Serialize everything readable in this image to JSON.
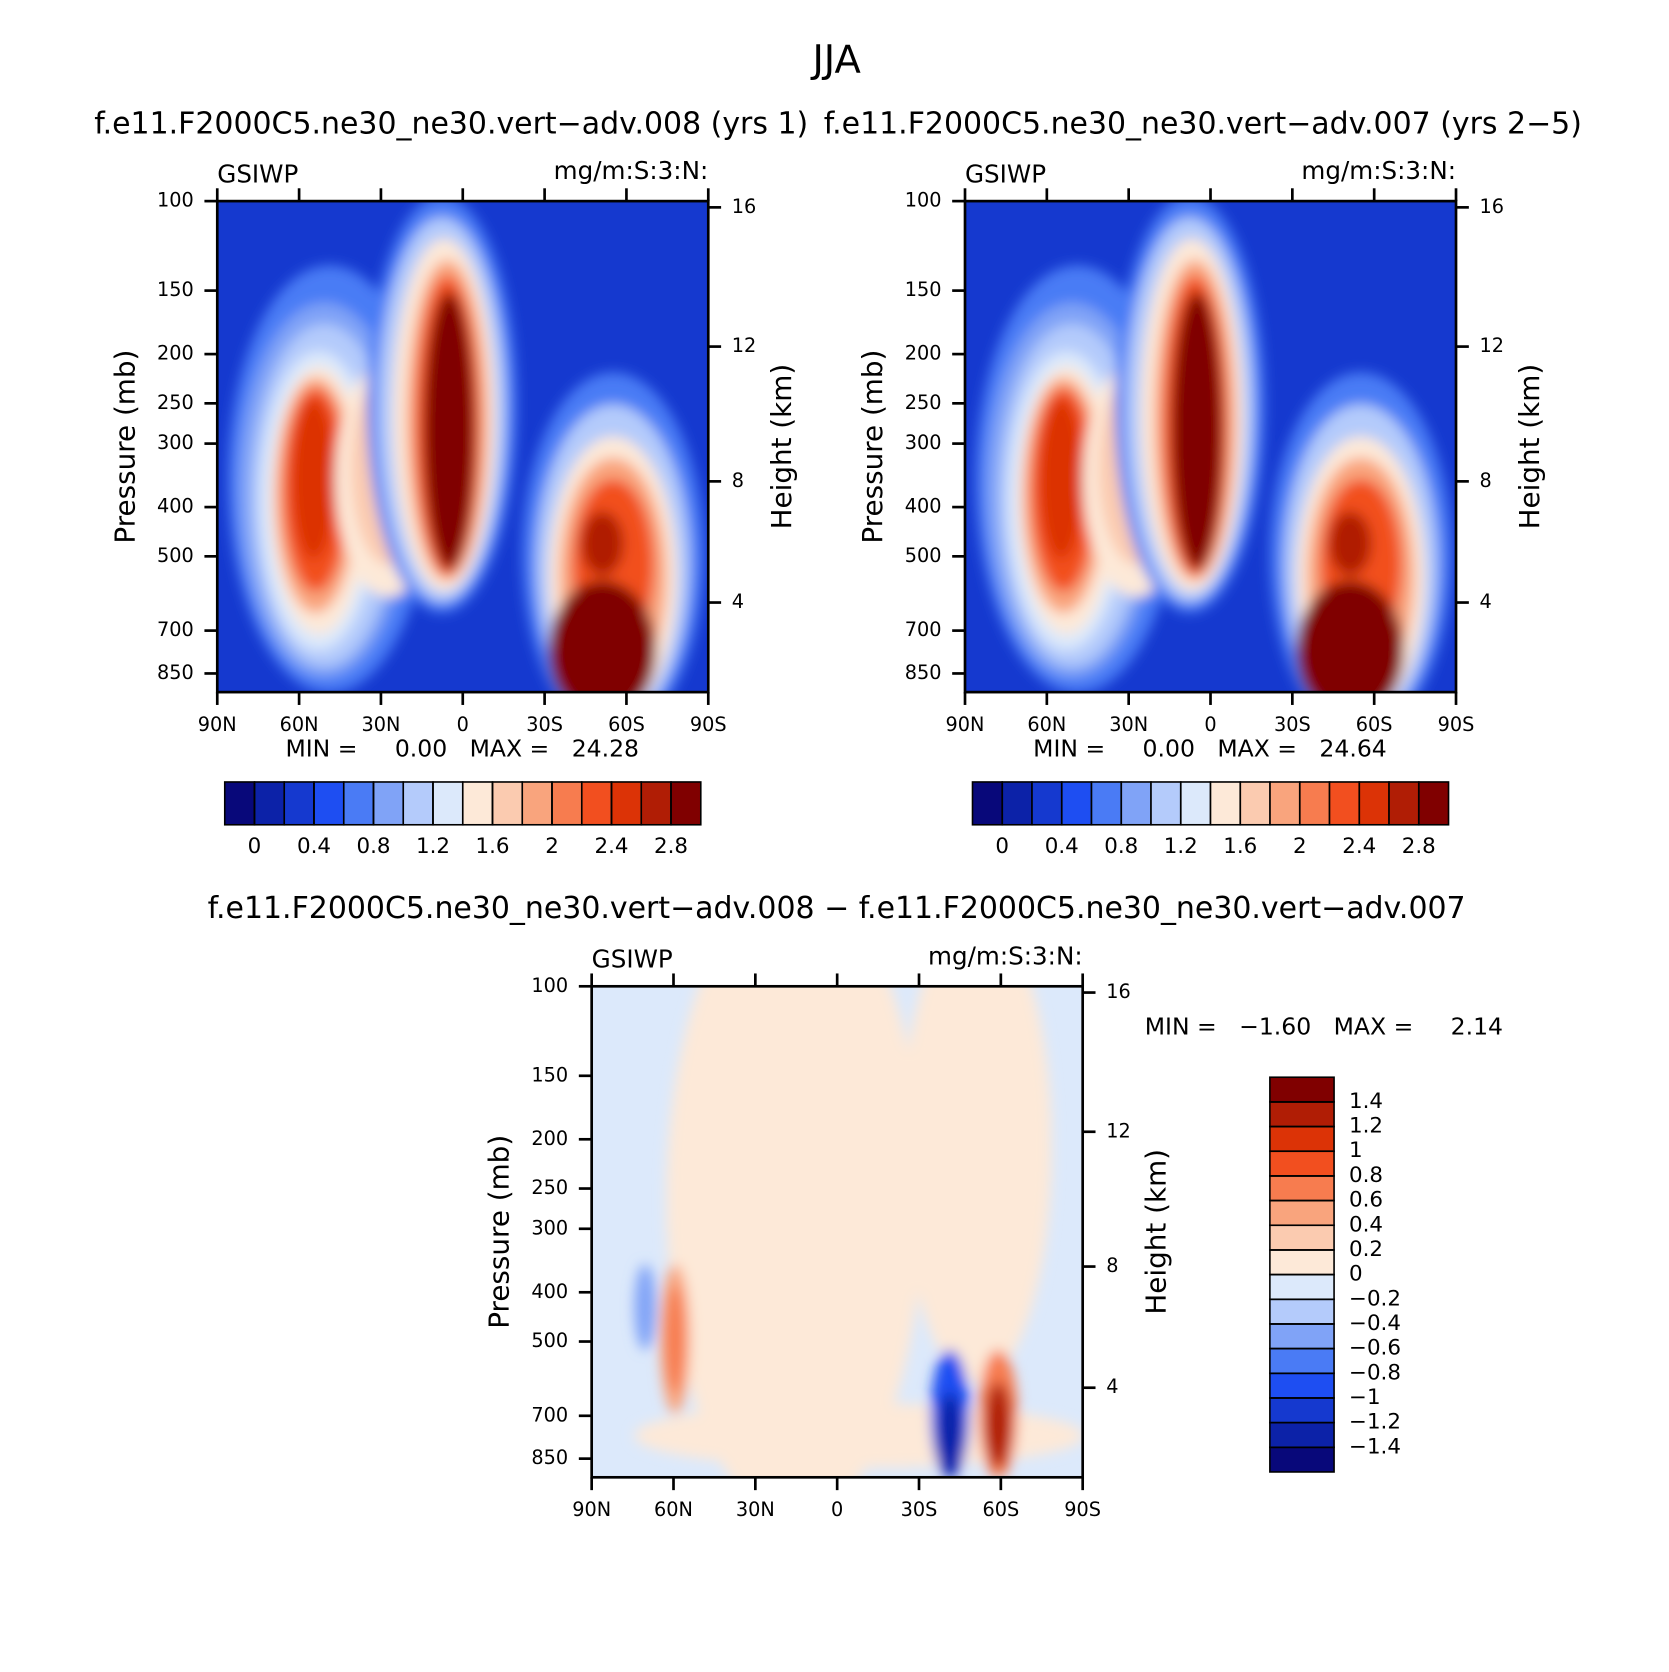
{
  "title": "JJA",
  "chart_data": [
    {
      "type": "contour",
      "title": "f.e11.F2000C5.ne30_ne30.vert−adv.008 (yrs 1)",
      "left_string": "GSIWP",
      "right_string": "mg/m:S:3:N:",
      "ylabel": "Pressure (mb)",
      "y2label": "Height (km)",
      "yscale": "log",
      "ylim": [
        925,
        100
      ],
      "yticks": [
        100,
        150,
        200,
        250,
        300,
        400,
        500,
        700,
        850
      ],
      "y2scale": "standard-atmosphere",
      "y2ticks": [
        4,
        8,
        12,
        16
      ],
      "xlim": [
        90,
        -90
      ],
      "xticks": [
        {
          "value": 90,
          "label": "90N"
        },
        {
          "value": 60,
          "label": "60N"
        },
        {
          "value": 30,
          "label": "30N"
        },
        0,
        {
          "value": -30,
          "label": "30S"
        },
        {
          "value": -60,
          "label": "60S"
        },
        {
          "value": -90,
          "label": "90S"
        }
      ],
      "stats": "MIN =     0.00   MAX =   24.28",
      "colorbar": {
        "orientation": "horizontal",
        "lim": [
          -0.2,
          3.0
        ],
        "ticks": [
          0,
          0.4,
          0.8,
          1.2,
          1.6,
          2,
          2.4,
          2.8
        ],
        "colors": [
          "#08087a",
          "#0c22a8",
          "#1539cf",
          "#1e4ef2",
          "#4a7bf5",
          "#80a3f7",
          "#b4cbfb",
          "#dce9fb",
          "#fde9d8",
          "#fbcbb0",
          "#f9a47d",
          "#f77c4f",
          "#f24f1f",
          "#dc3306",
          "#b01d05",
          "#800000"
        ]
      }
    },
    {
      "type": "contour",
      "title": "f.e11.F2000C5.ne30_ne30.vert−adv.007 (yrs 2−5)",
      "left_string": "GSIWP",
      "right_string": "mg/m:S:3:N:",
      "ylabel": "Pressure (mb)",
      "y2label": "Height (km)",
      "yscale": "log",
      "ylim": [
        925,
        100
      ],
      "yticks": [
        100,
        150,
        200,
        250,
        300,
        400,
        500,
        700,
        850
      ],
      "y2scale": "standard-atmosphere",
      "y2ticks": [
        4,
        8,
        12,
        16
      ],
      "xlim": [
        90,
        -90
      ],
      "xticks": [
        {
          "value": 90,
          "label": "90N"
        },
        {
          "value": 60,
          "label": "60N"
        },
        {
          "value": 30,
          "label": "30N"
        },
        0,
        {
          "value": -30,
          "label": "30S"
        },
        {
          "value": -60,
          "label": "60S"
        },
        {
          "value": -90,
          "label": "90S"
        }
      ],
      "stats": "MIN =     0.00   MAX =   24.64",
      "colorbar": {
        "orientation": "horizontal",
        "lim": [
          -0.2,
          3.0
        ],
        "ticks": [
          0,
          0.4,
          0.8,
          1.2,
          1.6,
          2,
          2.4,
          2.8
        ],
        "colors": [
          "#08087a",
          "#0c22a8",
          "#1539cf",
          "#1e4ef2",
          "#4a7bf5",
          "#80a3f7",
          "#b4cbfb",
          "#dce9fb",
          "#fde9d8",
          "#fbcbb0",
          "#f9a47d",
          "#f77c4f",
          "#f24f1f",
          "#dc3306",
          "#b01d05",
          "#800000"
        ]
      }
    },
    {
      "type": "contour",
      "title": "f.e11.F2000C5.ne30_ne30.vert−adv.008 − f.e11.F2000C5.ne30_ne30.vert−adv.007",
      "left_string": "GSIWP",
      "right_string": "mg/m:S:3:N:",
      "ylabel": "Pressure (mb)",
      "y2label": "Height (km)",
      "yscale": "log",
      "ylim": [
        925,
        100
      ],
      "yticks": [
        100,
        150,
        200,
        250,
        300,
        400,
        500,
        700,
        850
      ],
      "y2scale": "standard-atmosphere",
      "y2ticks": [
        4,
        8,
        12,
        16
      ],
      "xlim": [
        90,
        -90
      ],
      "xticks": [
        {
          "value": 90,
          "label": "90N"
        },
        {
          "value": 60,
          "label": "60N"
        },
        {
          "value": 30,
          "label": "30N"
        },
        0,
        {
          "value": -30,
          "label": "30S"
        },
        {
          "value": -60,
          "label": "60S"
        },
        {
          "value": -90,
          "label": "90S"
        }
      ],
      "stats": "MIN =   −1.60   MAX =     2.14",
      "colorbar": {
        "orientation": "vertical",
        "lim": [
          -1.6,
          1.6
        ],
        "ticks": [
          1.4,
          1.2,
          1,
          0.8,
          0.6,
          0.4,
          0.2,
          0,
          {
            "value": -0.2,
            "label": "−0.2"
          },
          {
            "value": -0.4,
            "label": "−0.4"
          },
          {
            "value": -0.6,
            "label": "−0.6"
          },
          {
            "value": -0.8,
            "label": "−0.8"
          },
          {
            "value": -1,
            "label": "−1"
          },
          {
            "value": -1.2,
            "label": "−1.2"
          },
          {
            "value": -1.4,
            "label": "−1.4"
          }
        ],
        "colors": [
          "#08087a",
          "#0c22a8",
          "#1539cf",
          "#1e4ef2",
          "#4a7bf5",
          "#80a3f7",
          "#b4cbfb",
          "#dce9fb",
          "#fde9d8",
          "#fbcbb0",
          "#f9a47d",
          "#f77c4f",
          "#f24f1f",
          "#dc3306",
          "#b01d05",
          "#800000"
        ]
      }
    }
  ]
}
